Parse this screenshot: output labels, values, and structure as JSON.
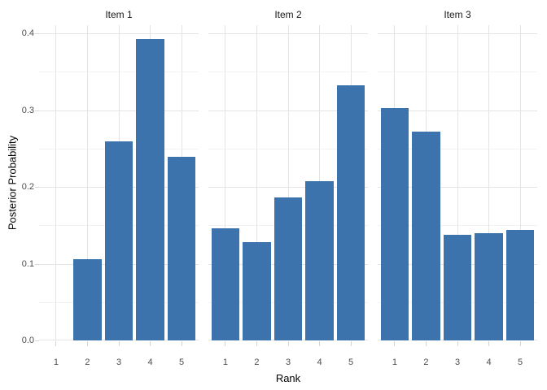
{
  "figure": {
    "background": "#ffffff"
  },
  "style": {
    "bar_color": "#3D73AD",
    "grid_major_color": "#E4E4E4",
    "grid_minor_color": "#F2F2F2",
    "tick_mark_color": "#D6D6D6",
    "tick_label_color": "#4D4D4D",
    "axis_title_color": "#000000",
    "facet_title_color": "#1A1A1A"
  },
  "chart_data": {
    "type": "bar",
    "faceted": true,
    "title": "",
    "xlabel": "Rank",
    "ylabel": "Posterior Probability",
    "categories": [
      "1",
      "2",
      "3",
      "4",
      "5"
    ],
    "facets": [
      {
        "label": "Item 1",
        "values": [
          0,
          0.106,
          0.259,
          0.393,
          0.239
        ]
      },
      {
        "label": "Item 2",
        "values": [
          0.146,
          0.128,
          0.186,
          0.207,
          0.332
        ]
      },
      {
        "label": "Item 3",
        "values": [
          0.303,
          0.272,
          0.138,
          0.14,
          0.144
        ]
      }
    ],
    "y_ticks": [
      {
        "value": 0.0,
        "label": "0.0"
      },
      {
        "value": 0.1,
        "label": "0.1"
      },
      {
        "value": 0.2,
        "label": "0.2"
      },
      {
        "value": 0.3,
        "label": "0.3"
      },
      {
        "value": 0.4,
        "label": "0.4"
      }
    ],
    "y_minor_ticks": [
      0.05,
      0.15,
      0.25,
      0.35
    ],
    "ylim": [
      0,
      0.4106
    ],
    "grid": "major+minor",
    "legend": false
  }
}
